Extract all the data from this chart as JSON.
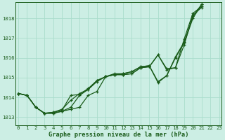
{
  "xlabel": "Graphe pression niveau de la mer (hPa)",
  "bg_color": "#cceee4",
  "grid_color": "#aaddcc",
  "line_color": "#1a5c1a",
  "ylim": [
    1012.6,
    1018.8
  ],
  "yticks": [
    1013,
    1014,
    1015,
    1016,
    1017,
    1018
  ],
  "xticks": [
    0,
    1,
    2,
    3,
    4,
    5,
    6,
    7,
    8,
    9,
    10,
    11,
    12,
    13,
    14,
    15,
    16,
    17,
    18,
    19,
    20,
    21,
    22,
    23
  ],
  "xlim": [
    -0.3,
    23.3
  ],
  "series": [
    {
      "x": [
        0,
        1,
        2,
        3,
        4,
        5,
        6,
        7,
        8,
        9,
        10,
        11,
        12,
        13,
        14,
        15,
        16,
        17,
        18,
        19,
        20,
        21,
        22,
        23
      ],
      "y": [
        1014.2,
        1014.1,
        1013.5,
        1013.2,
        1013.2,
        1013.3,
        1013.4,
        1013.5,
        1014.1,
        1014.3,
        1015.05,
        1015.15,
        1015.15,
        1015.2,
        1015.5,
        1015.55,
        1016.15,
        1015.45,
        1015.5,
        1016.65,
        1018.15,
        1018.55,
        null,
        null
      ]
    },
    {
      "x": [
        0,
        1,
        2,
        3,
        4,
        5,
        6,
        7,
        8,
        9,
        10,
        11,
        12,
        13,
        14,
        15,
        16,
        17,
        18,
        19,
        20,
        21,
        22,
        23
      ],
      "y": [
        1014.2,
        1014.1,
        1013.5,
        1013.2,
        1013.2,
        1013.3,
        1013.5,
        1014.1,
        1014.4,
        1014.8,
        1015.05,
        1015.15,
        1015.15,
        1015.2,
        1015.5,
        1015.55,
        1016.15,
        1015.4,
        1015.5,
        1016.95,
        1018.25,
        1018.6,
        null,
        null
      ]
    },
    {
      "x": [
        0,
        1,
        2,
        3,
        4,
        5,
        6,
        7,
        8,
        9,
        10,
        11,
        12,
        13,
        14,
        15,
        16,
        17,
        18,
        19,
        20,
        21,
        22,
        23
      ],
      "y": [
        1014.2,
        1014.1,
        1013.5,
        1013.2,
        1013.25,
        1013.4,
        1013.85,
        1014.2,
        1014.4,
        1014.85,
        1015.05,
        1015.2,
        1015.2,
        1015.3,
        1015.55,
        1015.6,
        1014.8,
        1015.1,
        1016.0,
        1016.75,
        1018.0,
        1018.7,
        null,
        null
      ]
    },
    {
      "x": [
        0,
        1,
        2,
        3,
        4,
        5,
        6,
        7,
        8,
        9,
        10,
        11,
        12,
        13,
        14,
        15,
        16,
        17,
        18,
        19,
        20,
        21,
        22,
        23
      ],
      "y": [
        1014.2,
        1014.1,
        1013.5,
        1013.2,
        1013.25,
        1013.35,
        1014.1,
        1014.15,
        1014.45,
        1014.85,
        1015.05,
        1015.15,
        1015.2,
        1015.3,
        1015.55,
        1015.6,
        1014.75,
        1015.1,
        1016.05,
        1016.8,
        1018.1,
        1018.7,
        null,
        null
      ]
    }
  ],
  "ylabel_fontsize": 5.5,
  "xlabel_fontsize": 6.2,
  "tick_fontsize": 5.2,
  "linewidth": 0.9,
  "markersize": 2.8,
  "markeredgewidth": 0.9
}
